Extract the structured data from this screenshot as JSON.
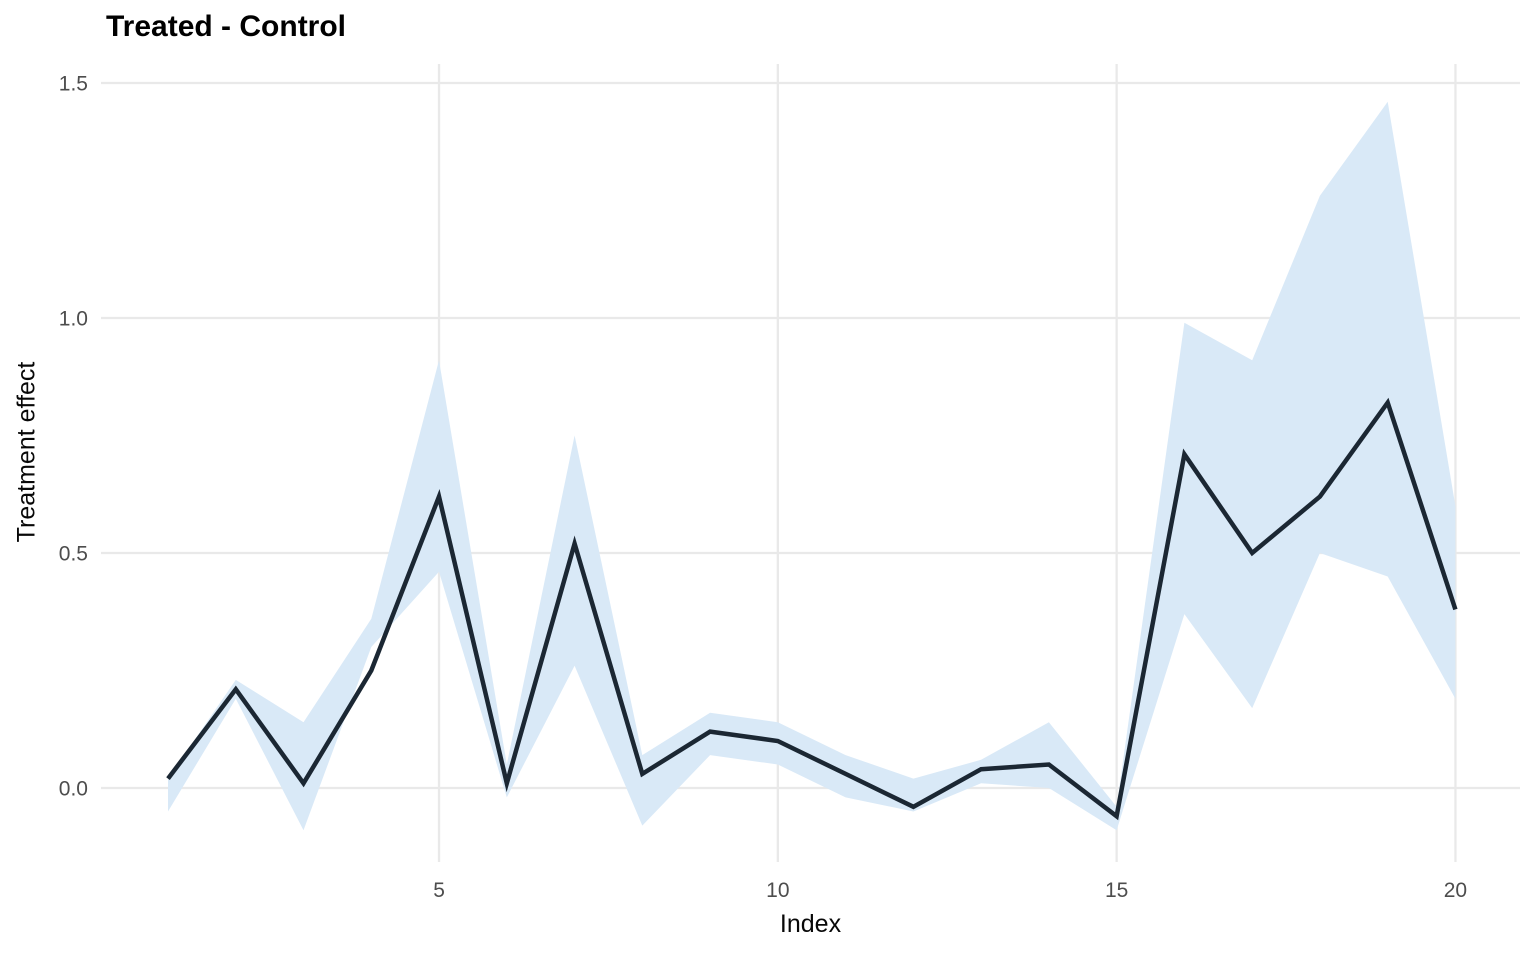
{
  "chart_data": {
    "type": "line",
    "title": "Treated - Control",
    "xlabel": "Index",
    "ylabel": "Treatment effect",
    "x": [
      1,
      2,
      3,
      4,
      5,
      6,
      7,
      8,
      9,
      10,
      11,
      12,
      13,
      14,
      15,
      16,
      17,
      18,
      19,
      20
    ],
    "series": [
      {
        "name": "treatment-effect-line",
        "values": [
          0.02,
          0.21,
          0.01,
          0.25,
          0.62,
          0.01,
          0.52,
          0.03,
          0.12,
          0.1,
          0.03,
          -0.04,
          0.04,
          0.05,
          -0.06,
          0.71,
          0.5,
          0.62,
          0.82,
          0.38
        ]
      },
      {
        "name": "ribbon-upper",
        "values": [
          0.02,
          0.23,
          0.14,
          0.36,
          0.91,
          0.05,
          0.75,
          0.07,
          0.16,
          0.14,
          0.07,
          0.02,
          0.06,
          0.14,
          -0.04,
          0.99,
          0.91,
          1.26,
          1.46,
          0.6
        ]
      },
      {
        "name": "ribbon-lower",
        "values": [
          -0.05,
          0.19,
          -0.09,
          0.3,
          0.46,
          -0.02,
          0.26,
          -0.08,
          0.07,
          0.05,
          -0.02,
          -0.05,
          0.01,
          0.0,
          -0.09,
          0.37,
          0.17,
          0.5,
          0.45,
          0.19
        ]
      }
    ],
    "x_ticks": [
      5,
      10,
      15,
      20
    ],
    "x_tick_labels": [
      "5",
      "10",
      "15",
      "20"
    ],
    "y_ticks": [
      0.0,
      0.5,
      1.0,
      1.5
    ],
    "y_tick_labels": [
      "0.0",
      "0.5",
      "1.0",
      "1.5"
    ],
    "xlim": [
      1,
      20
    ],
    "ylim": [
      -0.15,
      1.55
    ],
    "grid": "major-only",
    "legend": "none",
    "colors": {
      "line": "#1b2733",
      "ribbon_fill": "#d9e9f7",
      "gridline": "#e9e9e9",
      "tick_text": "#4d4d4d",
      "axis_title_text": "#080808",
      "title_text": "#000000",
      "background": "#ffffff"
    }
  }
}
